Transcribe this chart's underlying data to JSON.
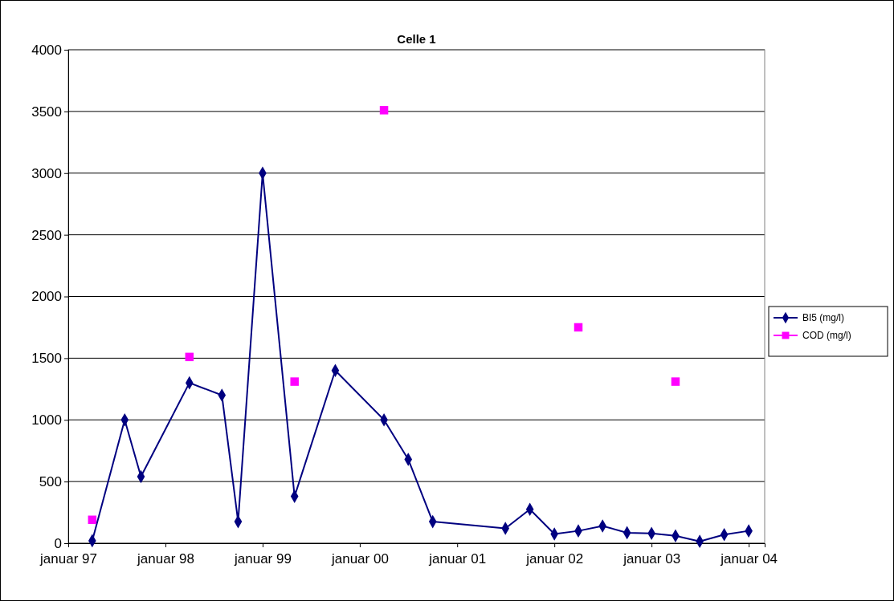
{
  "chart_data": {
    "type": "line",
    "title": "Celle 1",
    "xlim": [
      "1997-01",
      "2004-03"
    ],
    "xticks": [
      {
        "value": "1997-01",
        "label": "januar 97"
      },
      {
        "value": "1998-01",
        "label": "januar 98"
      },
      {
        "value": "1999-01",
        "label": "januar 99"
      },
      {
        "value": "2000-01",
        "label": "januar 00"
      },
      {
        "value": "2001-01",
        "label": "januar 01"
      },
      {
        "value": "2002-01",
        "label": "januar 02"
      },
      {
        "value": "2003-01",
        "label": "januar 03"
      },
      {
        "value": "2004-01",
        "label": "januar 04"
      }
    ],
    "ylim": [
      0,
      4000
    ],
    "yticks": [
      0,
      500,
      1000,
      1500,
      2000,
      2500,
      3000,
      3500,
      4000
    ],
    "grid": "y",
    "legend": "right",
    "series": [
      {
        "name": "BI5 (mg/l)",
        "marker": "diamond",
        "color": "#000080",
        "x": [
          "1997-04",
          "1997-08",
          "1997-10",
          "1998-04",
          "1998-08",
          "1998-10",
          "1999-01",
          "1999-05",
          "1999-10",
          "2000-04",
          "2000-07",
          "2000-10",
          "2001-07",
          "2001-10",
          "2002-01",
          "2002-04",
          "2002-07",
          "2002-10",
          "2003-01",
          "2003-04",
          "2003-07",
          "2003-10",
          "2004-01"
        ],
        "values": [
          20,
          1000,
          540,
          1300,
          1200,
          175,
          3000,
          380,
          1400,
          1000,
          680,
          175,
          120,
          275,
          75,
          100,
          140,
          85,
          80,
          60,
          15,
          70,
          100
        ]
      },
      {
        "name": "COD (mg/l)",
        "type": "scatter",
        "marker": "square",
        "color": "#ff00ff",
        "x": [
          "1997-04",
          "1998-04",
          "1999-05",
          "2000-04",
          "2002-04",
          "2003-04"
        ],
        "values": [
          190,
          1510,
          1310,
          3510,
          1750,
          1310
        ]
      }
    ]
  }
}
